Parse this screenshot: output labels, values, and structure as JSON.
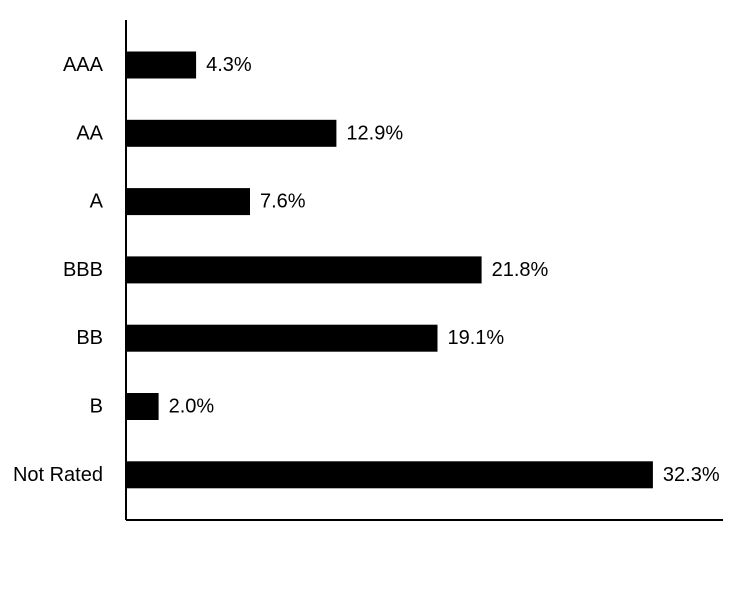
{
  "chart_data": {
    "type": "bar",
    "orientation": "horizontal",
    "categories": [
      "AAA",
      "AA",
      "A",
      "BBB",
      "BB",
      "B",
      "Not Rated"
    ],
    "values": [
      4.3,
      12.9,
      7.6,
      21.8,
      19.1,
      2.0,
      32.3
    ],
    "data_labels": [
      "4.3%",
      "12.9%",
      "7.6%",
      "21.8%",
      "19.1%",
      "2.0%",
      "32.3%"
    ],
    "title": "",
    "xlabel": "",
    "ylabel": "",
    "xlim": [
      0,
      36.6
    ],
    "grid": false,
    "legend": "none",
    "bar_color": "#000000",
    "axis_color": "#000000"
  }
}
